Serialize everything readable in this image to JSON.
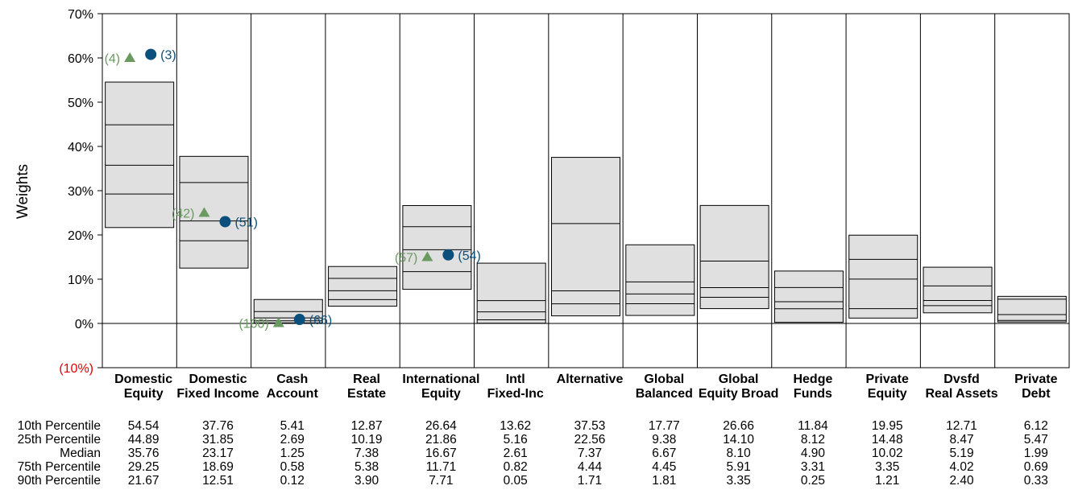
{
  "chart_data": {
    "type": "box",
    "ylabel": "Weights",
    "ylim": [
      -10,
      70
    ],
    "yticks": [
      "(10%)",
      "0%",
      "10%",
      "20%",
      "30%",
      "40%",
      "50%",
      "60%",
      "70%"
    ],
    "categories": [
      [
        "Domestic",
        "Equity"
      ],
      [
        "Domestic",
        "Fixed Income"
      ],
      [
        "Cash",
        "Account"
      ],
      [
        "Real",
        "Estate"
      ],
      [
        "International",
        "Equity"
      ],
      [
        "Intl",
        "Fixed-Inc"
      ],
      [
        "Alternative",
        ""
      ],
      [
        "Global",
        "Balanced"
      ],
      [
        "Global",
        "Equity Broad"
      ],
      [
        "Hedge",
        "Funds"
      ],
      [
        "Private",
        "Equity"
      ],
      [
        "Dvsfd",
        "Real Assets"
      ],
      [
        "Private",
        "Debt"
      ]
    ],
    "percentile_labels": [
      "10th Percentile",
      "25th Percentile",
      "Median",
      "75th Percentile",
      "90th Percentile"
    ],
    "percentiles": [
      [
        "54.54",
        "44.89",
        "35.76",
        "29.25",
        "21.67"
      ],
      [
        "37.76",
        "31.85",
        "23.17",
        "18.69",
        "12.51"
      ],
      [
        "5.41",
        "2.69",
        "1.25",
        "0.58",
        "0.12"
      ],
      [
        "12.87",
        "10.19",
        "7.38",
        "5.38",
        "3.90"
      ],
      [
        "26.64",
        "21.86",
        "16.67",
        "11.71",
        "7.71"
      ],
      [
        "13.62",
        "5.16",
        "2.61",
        "0.82",
        "0.05"
      ],
      [
        "37.53",
        "22.56",
        "7.37",
        "4.44",
        "1.71"
      ],
      [
        "17.77",
        "9.38",
        "6.67",
        "4.45",
        "1.81"
      ],
      [
        "26.66",
        "14.10",
        "8.10",
        "5.91",
        "3.35"
      ],
      [
        "11.84",
        "8.12",
        "4.90",
        "3.31",
        "0.25"
      ],
      [
        "19.95",
        "14.48",
        "10.02",
        "3.35",
        "1.21"
      ],
      [
        "12.71",
        "8.47",
        "5.19",
        "4.02",
        "2.40"
      ],
      [
        "6.12",
        "5.47",
        "1.99",
        "0.69",
        "0.33"
      ]
    ],
    "markers": [
      {
        "category": 0,
        "shape": "circle",
        "color": "#0b4f7c",
        "value": 60.8,
        "label": "(3)",
        "side": "right"
      },
      {
        "category": 0,
        "shape": "triangle",
        "color": "#6a9a60",
        "value": 60.0,
        "label": "(4)",
        "side": "left"
      },
      {
        "category": 1,
        "shape": "circle",
        "color": "#0b4f7c",
        "value": 23.0,
        "label": "(51)",
        "side": "right"
      },
      {
        "category": 1,
        "shape": "triangle",
        "color": "#6a9a60",
        "value": 25.0,
        "label": "(42)",
        "side": "left"
      },
      {
        "category": 2,
        "shape": "circle",
        "color": "#0b4f7c",
        "value": 0.9,
        "label": "(66)",
        "side": "right"
      },
      {
        "category": 2,
        "shape": "triangle",
        "color": "#6a9a60",
        "value": 0.1,
        "label": "(100)",
        "side": "left"
      },
      {
        "category": 4,
        "shape": "circle",
        "color": "#0b4f7c",
        "value": 15.5,
        "label": "(54)",
        "side": "right"
      },
      {
        "category": 4,
        "shape": "triangle",
        "color": "#6a9a60",
        "value": 15.0,
        "label": "(57)",
        "side": "left"
      }
    ],
    "colors": {
      "box_fill": "#e0e0e0",
      "negative_tick": "#e00000",
      "circle": "#0b4f7c",
      "triangle": "#6a9a60"
    }
  }
}
